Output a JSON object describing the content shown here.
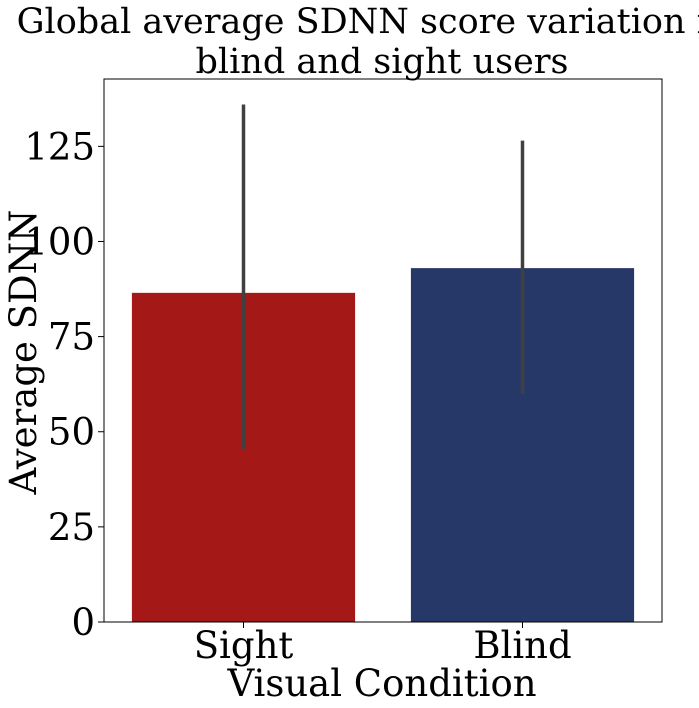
{
  "chart_data": {
    "type": "bar",
    "title_lines": [
      "Global average SDNN score variation for",
      "blind and sight users"
    ],
    "xlabel": "Visual Condition",
    "ylabel": "Average SDNN",
    "categories": [
      "Sight",
      "Blind"
    ],
    "values": [
      86.5,
      93.0
    ],
    "error_bars": [
      {
        "low": 45.5,
        "high": 136.0
      },
      {
        "low": 60.0,
        "high": 126.5
      }
    ],
    "colors": [
      "#a41818",
      "#263868"
    ],
    "error_bar_color": "#404040",
    "ylim": [
      0,
      142.7
    ],
    "yticks": [
      0,
      25,
      50,
      75,
      100,
      125
    ],
    "grid": false,
    "legend": "none"
  }
}
